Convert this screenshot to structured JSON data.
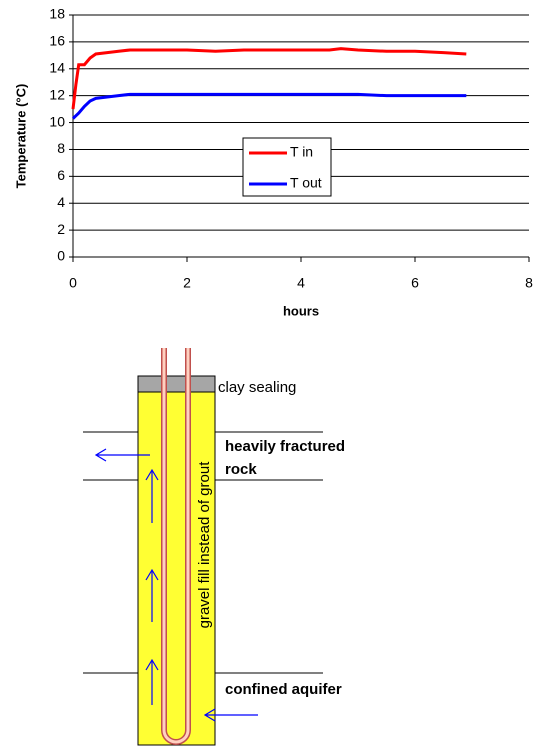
{
  "chart_data": {
    "type": "line",
    "y_label": "Temperature (°C)",
    "x_label": "hours",
    "x": [
      0,
      0.05,
      0.1,
      0.2,
      0.3,
      0.4,
      0.6,
      0.8,
      1,
      1.2,
      1.5,
      2,
      2.5,
      3,
      3.5,
      4,
      4.5,
      4.7,
      5,
      5.5,
      6,
      6.5,
      6.9
    ],
    "series": [
      {
        "name": "T in",
        "color": "#ff0000",
        "values": [
          11,
          12.8,
          14.3,
          14.3,
          14.8,
          15.1,
          15.2,
          15.3,
          15.4,
          15.4,
          15.4,
          15.4,
          15.3,
          15.4,
          15.4,
          15.4,
          15.4,
          15.5,
          15.4,
          15.3,
          15.3,
          15.2,
          15.1
        ]
      },
      {
        "name": "T out",
        "color": "#0000ff",
        "values": [
          10.3,
          10.5,
          10.7,
          11.2,
          11.6,
          11.8,
          11.9,
          12,
          12.1,
          12.1,
          12.1,
          12.1,
          12.1,
          12.1,
          12.1,
          12.1,
          12.1,
          12.1,
          12.1,
          12,
          12,
          12,
          12
        ]
      }
    ],
    "xlim": [
      0,
      8
    ],
    "xticks": [
      0,
      2,
      4,
      6,
      8
    ],
    "ylim": [
      0,
      18
    ],
    "yticks": [
      0,
      2,
      4,
      6,
      8,
      10,
      12,
      14,
      16,
      18
    ],
    "grid": true
  },
  "diagram": {
    "clay": "clay sealing",
    "fractured": [
      "heavily fractured",
      "rock"
    ],
    "fill": "gravel fill instead of grout",
    "aquifer": "confined aquifer"
  }
}
